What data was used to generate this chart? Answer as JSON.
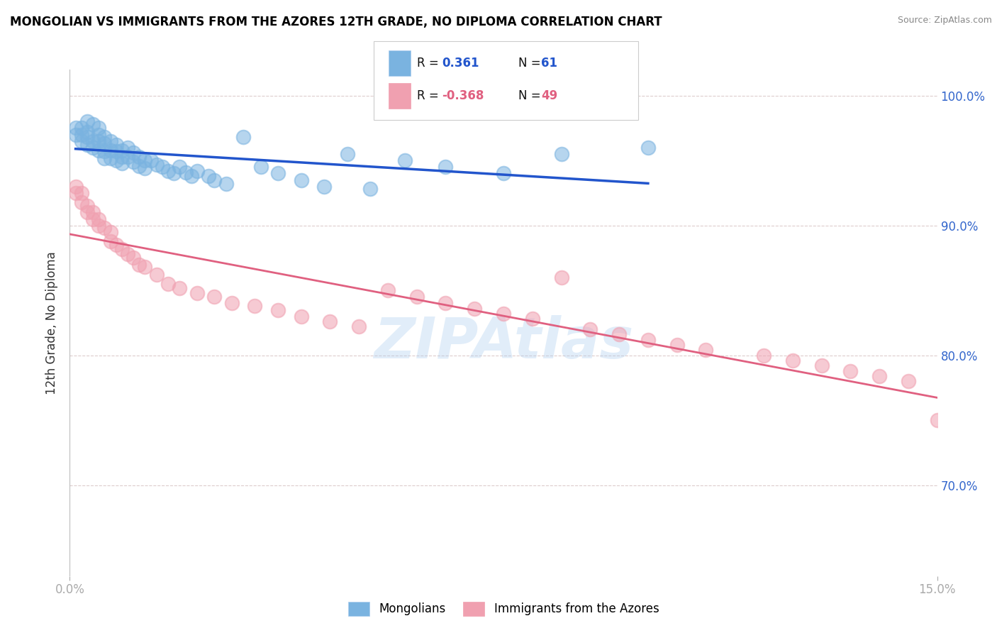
{
  "title": "MONGOLIAN VS IMMIGRANTS FROM THE AZORES 12TH GRADE, NO DIPLOMA CORRELATION CHART",
  "source_text": "Source: ZipAtlas.com",
  "ylabel": "12th Grade, No Diploma",
  "xlim": [
    0.0,
    0.15
  ],
  "ylim": [
    0.63,
    1.02
  ],
  "xtick_labels": [
    "0.0%",
    "15.0%"
  ],
  "xtick_positions": [
    0.0,
    0.15
  ],
  "ytick_labels": [
    "70.0%",
    "80.0%",
    "90.0%",
    "100.0%"
  ],
  "ytick_positions": [
    0.7,
    0.8,
    0.9,
    1.0
  ],
  "mongolian_color": "#7ab3e0",
  "azores_color": "#f0a0b0",
  "mongolian_line_color": "#2255cc",
  "azores_line_color": "#e06080",
  "r_mongolian": 0.361,
  "n_mongolian": 61,
  "r_azores": -0.368,
  "n_azores": 49,
  "legend_label_mongolian": "Mongolians",
  "legend_label_azores": "Immigrants from the Azores",
  "watermark": "ZIPAtlas",
  "mongolian_x": [
    0.001,
    0.001,
    0.002,
    0.002,
    0.002,
    0.003,
    0.003,
    0.003,
    0.003,
    0.004,
    0.004,
    0.004,
    0.005,
    0.005,
    0.005,
    0.005,
    0.006,
    0.006,
    0.006,
    0.006,
    0.007,
    0.007,
    0.007,
    0.008,
    0.008,
    0.008,
    0.009,
    0.009,
    0.009,
    0.01,
    0.01,
    0.011,
    0.011,
    0.012,
    0.012,
    0.013,
    0.013,
    0.014,
    0.015,
    0.016,
    0.017,
    0.018,
    0.019,
    0.02,
    0.021,
    0.022,
    0.024,
    0.025,
    0.027,
    0.03,
    0.033,
    0.036,
    0.04,
    0.044,
    0.048,
    0.052,
    0.058,
    0.065,
    0.075,
    0.085,
    0.1
  ],
  "mongolian_y": [
    0.975,
    0.97,
    0.975,
    0.97,
    0.965,
    0.98,
    0.972,
    0.968,
    0.962,
    0.978,
    0.965,
    0.96,
    0.975,
    0.97,
    0.965,
    0.958,
    0.968,
    0.963,
    0.957,
    0.952,
    0.965,
    0.958,
    0.952,
    0.962,
    0.957,
    0.95,
    0.958,
    0.953,
    0.948,
    0.96,
    0.953,
    0.956,
    0.949,
    0.953,
    0.946,
    0.95,
    0.944,
    0.95,
    0.947,
    0.945,
    0.942,
    0.94,
    0.945,
    0.941,
    0.938,
    0.942,
    0.938,
    0.935,
    0.932,
    0.968,
    0.945,
    0.94,
    0.935,
    0.93,
    0.955,
    0.928,
    0.95,
    0.945,
    0.94,
    0.955,
    0.96
  ],
  "azores_x": [
    0.001,
    0.001,
    0.002,
    0.002,
    0.003,
    0.003,
    0.004,
    0.004,
    0.005,
    0.005,
    0.006,
    0.007,
    0.007,
    0.008,
    0.009,
    0.01,
    0.011,
    0.012,
    0.013,
    0.015,
    0.017,
    0.019,
    0.022,
    0.025,
    0.028,
    0.032,
    0.036,
    0.04,
    0.045,
    0.05,
    0.055,
    0.06,
    0.065,
    0.07,
    0.075,
    0.08,
    0.085,
    0.09,
    0.095,
    0.1,
    0.105,
    0.11,
    0.12,
    0.125,
    0.13,
    0.135,
    0.14,
    0.145,
    0.15
  ],
  "azores_y": [
    0.93,
    0.925,
    0.925,
    0.918,
    0.915,
    0.91,
    0.91,
    0.905,
    0.905,
    0.9,
    0.898,
    0.895,
    0.888,
    0.885,
    0.882,
    0.878,
    0.875,
    0.87,
    0.868,
    0.862,
    0.855,
    0.852,
    0.848,
    0.845,
    0.84,
    0.838,
    0.835,
    0.83,
    0.826,
    0.822,
    0.85,
    0.845,
    0.84,
    0.836,
    0.832,
    0.828,
    0.86,
    0.82,
    0.816,
    0.812,
    0.808,
    0.804,
    0.8,
    0.796,
    0.792,
    0.788,
    0.784,
    0.78,
    0.75
  ]
}
